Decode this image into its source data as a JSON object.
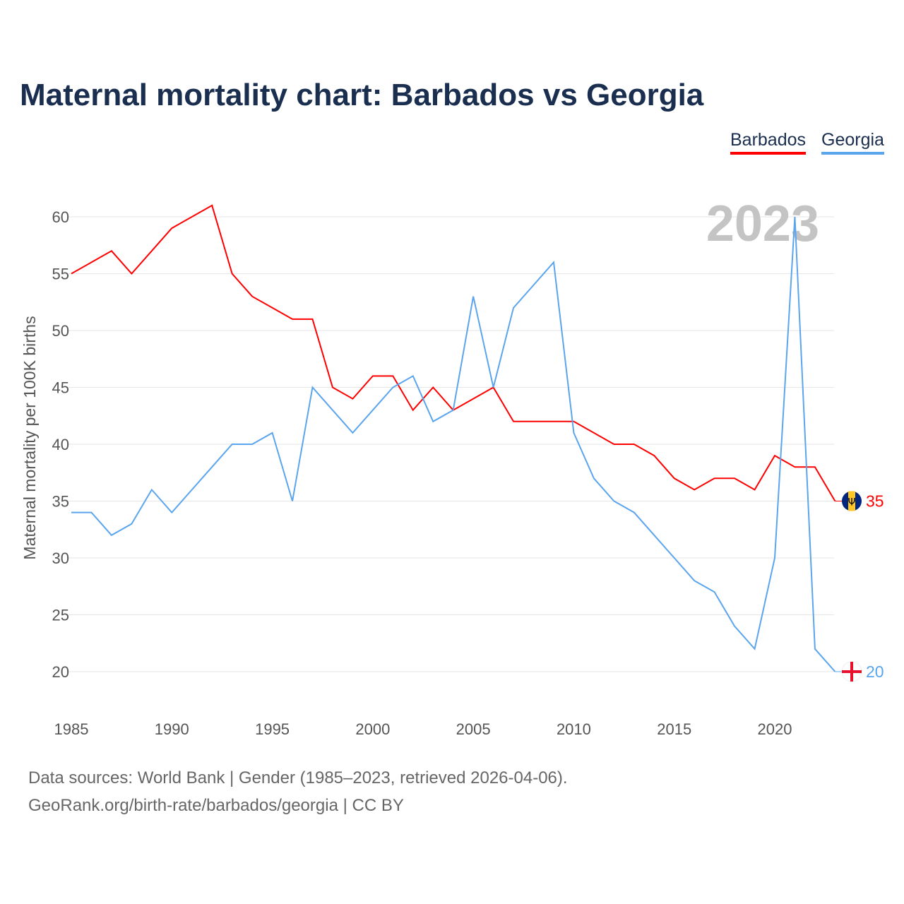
{
  "chart_data": {
    "type": "line",
    "title": "Maternal mortality chart: Barbados vs Georgia",
    "xlabel": "",
    "ylabel": "Maternal mortality per 100K births",
    "year_label": "2023",
    "x": [
      1985,
      1986,
      1987,
      1988,
      1989,
      1990,
      1991,
      1992,
      1993,
      1994,
      1995,
      1996,
      1997,
      1998,
      1999,
      2000,
      2001,
      2002,
      2003,
      2004,
      2005,
      2006,
      2007,
      2008,
      2009,
      2010,
      2011,
      2012,
      2013,
      2014,
      2015,
      2016,
      2017,
      2018,
      2019,
      2020,
      2021,
      2022,
      2023
    ],
    "xticks": [
      "1985",
      "1990",
      "1995",
      "2000",
      "2005",
      "2010",
      "2015",
      "2020"
    ],
    "yticks": [
      "20",
      "25",
      "30",
      "35",
      "40",
      "45",
      "50",
      "55",
      "60"
    ],
    "xlim": [
      1985,
      2023
    ],
    "ylim": [
      20,
      60
    ],
    "grid": true,
    "legend_position": "top-right",
    "series": [
      {
        "name": "Barbados",
        "color": "#ff0000",
        "end_label": "35",
        "values": [
          55,
          56,
          57,
          55,
          57,
          59,
          60,
          61,
          55,
          53,
          52,
          51,
          51,
          45,
          44,
          46,
          46,
          43,
          45,
          43,
          44,
          45,
          42,
          42,
          42,
          42,
          41,
          40,
          40,
          39,
          37,
          36,
          37,
          37,
          36,
          39,
          38,
          38,
          35
        ]
      },
      {
        "name": "Georgia",
        "color": "#5aa5ee",
        "end_label": "20",
        "values": [
          34,
          34,
          32,
          33,
          36,
          34,
          36,
          38,
          40,
          40,
          41,
          35,
          45,
          43,
          41,
          43,
          45,
          46,
          42,
          43,
          53,
          45,
          52,
          54,
          56,
          41,
          37,
          35,
          34,
          32,
          30,
          28,
          27,
          24,
          22,
          30,
          60,
          22,
          20
        ]
      }
    ]
  },
  "footer": {
    "source": "Data sources: World Bank | Gender (1985–2023, retrieved 2026-04-06).",
    "credit": "GeoRank.org/birth-rate/barbados/georgia | CC BY"
  }
}
